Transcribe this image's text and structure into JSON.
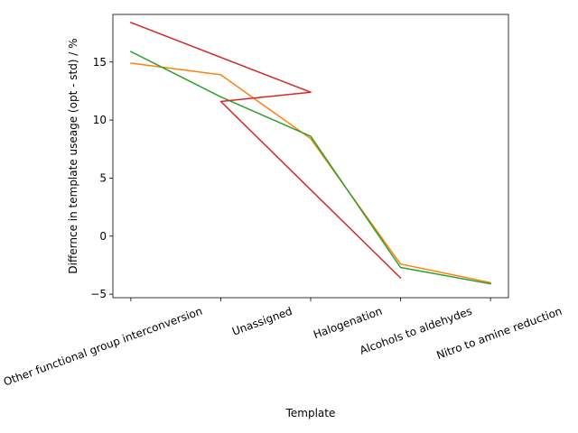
{
  "chart_data": {
    "type": "line",
    "title": "",
    "xlabel": "Template",
    "ylabel": "Differnce in template useage (opt - std) / %",
    "categories": [
      "Other functional group interconversion",
      "Unassigned",
      "Halogenation",
      "Alcohols to aldehydes",
      "Nitro to amine reduction"
    ],
    "yticks": [
      -5,
      0,
      5,
      10,
      15
    ],
    "ylim": [
      -5.3,
      19.1
    ],
    "grid": false,
    "legend": "none",
    "series": [
      {
        "color": "#ff7f0e",
        "x": [
          0,
          1,
          2,
          3,
          4
        ],
        "y": [
          14.9,
          13.9,
          8.4,
          -2.4,
          -4.0
        ]
      },
      {
        "color": "#2ca02c",
        "x": [
          0,
          1,
          2,
          3,
          4
        ],
        "y": [
          15.9,
          12.0,
          8.6,
          -2.7,
          -4.1
        ]
      },
      {
        "color": "#d62728",
        "x": [
          0,
          2,
          1,
          3
        ],
        "y": [
          18.4,
          12.4,
          11.6,
          -3.6
        ]
      }
    ]
  }
}
